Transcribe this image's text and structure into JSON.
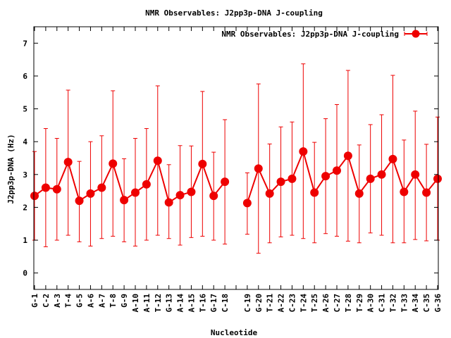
{
  "chart_data": {
    "type": "line",
    "title": "NMR Observables: J2pp3p-DNA J-coupling",
    "xlabel": "Nucleotide",
    "ylabel": "J2pp3p-DNA (Hz)",
    "ylim": [
      -0.5,
      7.5
    ],
    "yticks": [
      0,
      1,
      2,
      3,
      4,
      5,
      6,
      7
    ],
    "xlim": [
      0.5,
      36.5
    ],
    "grid": false,
    "legend_position": "top-right",
    "series": [
      {
        "name": "NMR Observables: J2pp3p-DNA J-coupling",
        "color": "#ee0000",
        "points": [
          {
            "x": 1,
            "label": "G-1",
            "y": 2.35,
            "yerr_low": 1.0,
            "yerr_high": 3.7
          },
          {
            "x": 2,
            "label": "C-2",
            "y": 2.6,
            "yerr_low": 0.8,
            "yerr_high": 4.4
          },
          {
            "x": 3,
            "label": "A-3",
            "y": 2.55,
            "yerr_low": 1.0,
            "yerr_high": 4.1
          },
          {
            "x": 4,
            "label": "T-4",
            "y": 3.38,
            "yerr_low": 1.15,
            "yerr_high": 5.57
          },
          {
            "x": 5,
            "label": "G-5",
            "y": 2.2,
            "yerr_low": 0.95,
            "yerr_high": 3.4
          },
          {
            "x": 6,
            "label": "A-6",
            "y": 2.42,
            "yerr_low": 0.82,
            "yerr_high": 4.0
          },
          {
            "x": 7,
            "label": "A-7",
            "y": 2.6,
            "yerr_low": 1.05,
            "yerr_high": 4.18
          },
          {
            "x": 8,
            "label": "T-8",
            "y": 3.33,
            "yerr_low": 1.12,
            "yerr_high": 5.55
          },
          {
            "x": 9,
            "label": "G-9",
            "y": 2.22,
            "yerr_low": 0.95,
            "yerr_high": 3.48
          },
          {
            "x": 10,
            "label": "A-10",
            "y": 2.45,
            "yerr_low": 0.82,
            "yerr_high": 4.1
          },
          {
            "x": 11,
            "label": "A-11",
            "y": 2.7,
            "yerr_low": 1.0,
            "yerr_high": 4.4
          },
          {
            "x": 12,
            "label": "T-12",
            "y": 3.42,
            "yerr_low": 1.15,
            "yerr_high": 5.7
          },
          {
            "x": 13,
            "label": "G-13",
            "y": 2.15,
            "yerr_low": 1.05,
            "yerr_high": 3.3
          },
          {
            "x": 14,
            "label": "A-14",
            "y": 2.37,
            "yerr_low": 0.85,
            "yerr_high": 3.88
          },
          {
            "x": 15,
            "label": "A-15",
            "y": 2.47,
            "yerr_low": 1.08,
            "yerr_high": 3.87
          },
          {
            "x": 16,
            "label": "T-16",
            "y": 3.32,
            "yerr_low": 1.12,
            "yerr_high": 5.53
          },
          {
            "x": 17,
            "label": "G-17",
            "y": 2.35,
            "yerr_low": 1.0,
            "yerr_high": 3.68
          },
          {
            "x": 18,
            "label": "C-18",
            "y": 2.78,
            "yerr_low": 0.88,
            "yerr_high": 4.67
          },
          {
            "x": 19,
            "label": "",
            "y": null,
            "yerr_low": null,
            "yerr_high": null
          },
          {
            "x": 20,
            "label": "C-19",
            "y": 2.13,
            "yerr_low": 1.18,
            "yerr_high": 3.05
          },
          {
            "x": 21,
            "label": "G-20",
            "y": 3.18,
            "yerr_low": 0.6,
            "yerr_high": 5.76
          },
          {
            "x": 22,
            "label": "T-21",
            "y": 2.42,
            "yerr_low": 0.92,
            "yerr_high": 3.93
          },
          {
            "x": 23,
            "label": "A-22",
            "y": 2.78,
            "yerr_low": 1.1,
            "yerr_high": 4.45
          },
          {
            "x": 24,
            "label": "C-23",
            "y": 2.87,
            "yerr_low": 1.15,
            "yerr_high": 4.6
          },
          {
            "x": 25,
            "label": "T-24",
            "y": 3.7,
            "yerr_low": 1.05,
            "yerr_high": 6.37
          },
          {
            "x": 26,
            "label": "T-25",
            "y": 2.45,
            "yerr_low": 0.92,
            "yerr_high": 3.98
          },
          {
            "x": 27,
            "label": "A-26",
            "y": 2.95,
            "yerr_low": 1.2,
            "yerr_high": 4.7
          },
          {
            "x": 28,
            "label": "C-27",
            "y": 3.12,
            "yerr_low": 1.12,
            "yerr_high": 5.13
          },
          {
            "x": 29,
            "label": "T-28",
            "y": 3.57,
            "yerr_low": 0.97,
            "yerr_high": 6.17
          },
          {
            "x": 30,
            "label": "T-29",
            "y": 2.42,
            "yerr_low": 0.92,
            "yerr_high": 3.9
          },
          {
            "x": 31,
            "label": "A-30",
            "y": 2.87,
            "yerr_low": 1.22,
            "yerr_high": 4.52
          },
          {
            "x": 32,
            "label": "C-31",
            "y": 3.0,
            "yerr_low": 1.15,
            "yerr_high": 4.82
          },
          {
            "x": 33,
            "label": "T-32",
            "y": 3.47,
            "yerr_low": 0.92,
            "yerr_high": 6.02
          },
          {
            "x": 34,
            "label": "T-33",
            "y": 2.47,
            "yerr_low": 0.92,
            "yerr_high": 4.05
          },
          {
            "x": 35,
            "label": "A-34",
            "y": 3.0,
            "yerr_low": 1.02,
            "yerr_high": 4.93
          },
          {
            "x": 36,
            "label": "C-35",
            "y": 2.45,
            "yerr_low": 0.98,
            "yerr_high": 3.92
          },
          {
            "x": 37,
            "label": "G-36",
            "y": 2.87,
            "yerr_low": 1.0,
            "yerr_high": 4.75
          }
        ]
      }
    ]
  }
}
